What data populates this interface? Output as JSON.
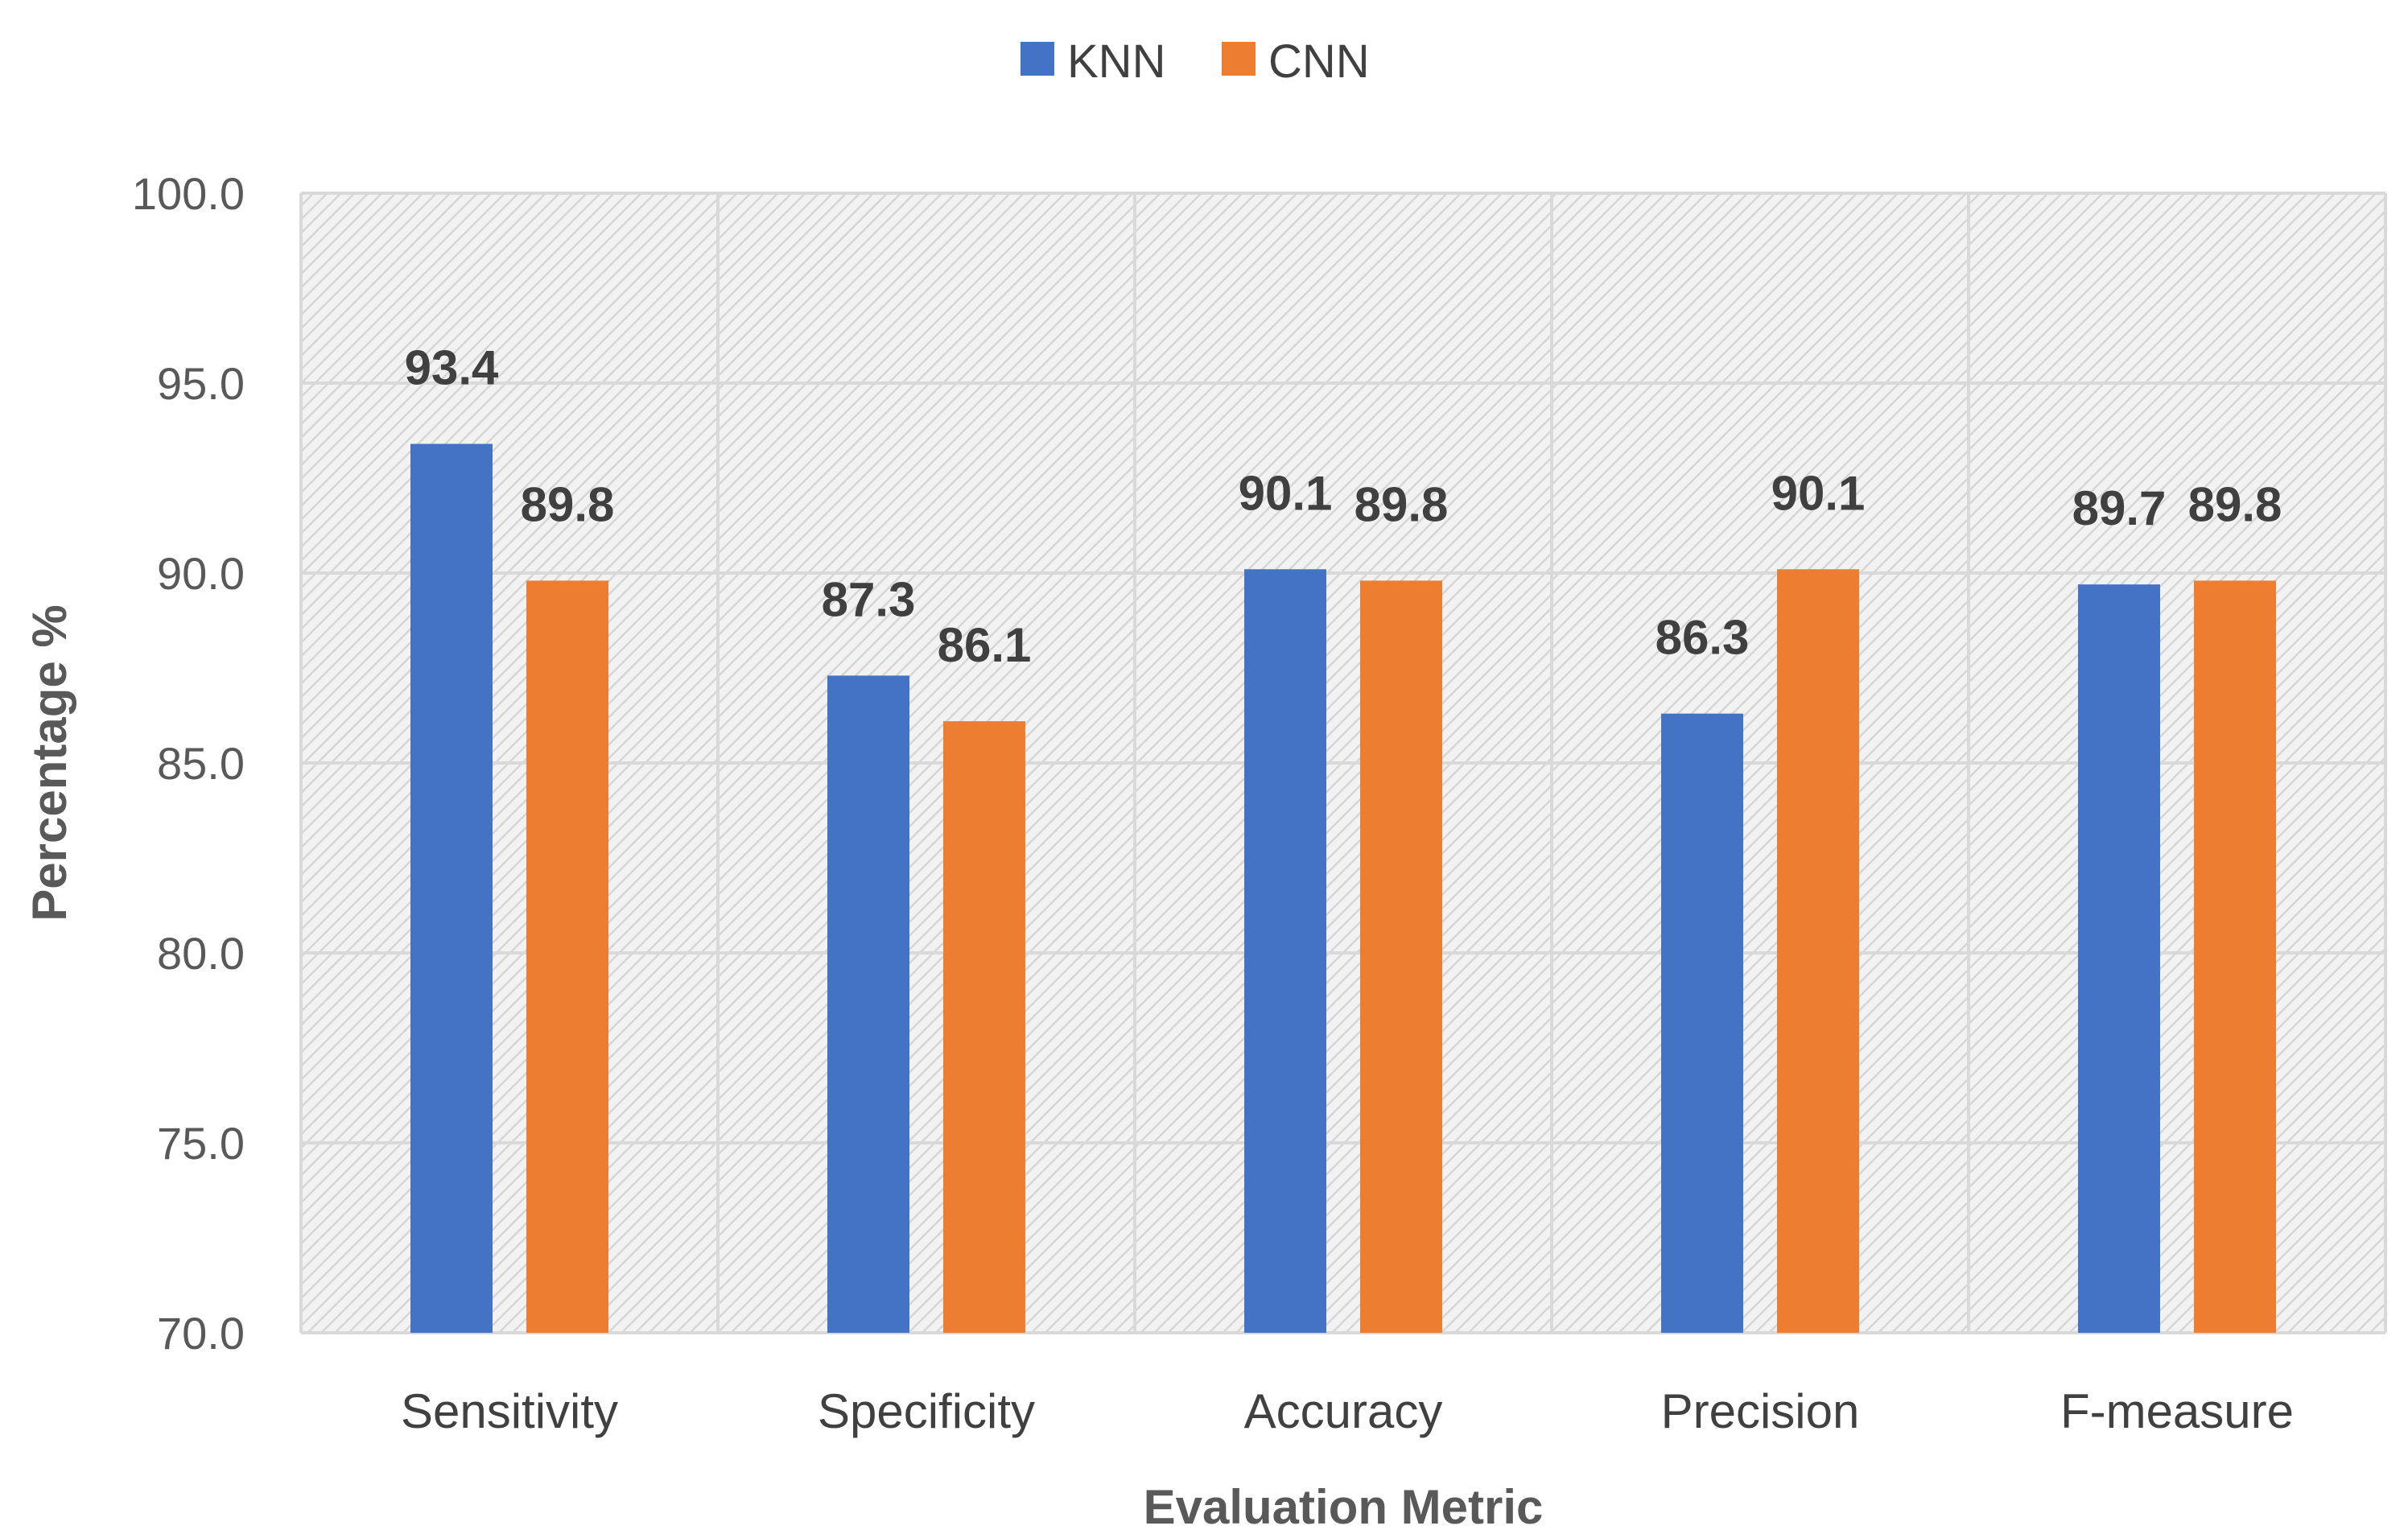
{
  "chart_data": {
    "type": "bar",
    "title": "",
    "xlabel": "Evaluation Metric",
    "ylabel": "Percentage %",
    "ylim": [
      70,
      100
    ],
    "ytick_step": 5,
    "yticks": [
      "70.0",
      "75.0",
      "80.0",
      "85.0",
      "90.0",
      "95.0",
      "100.0"
    ],
    "grid": true,
    "legend_position": "top-center",
    "categories": [
      "Sensitivity",
      "Specificity",
      "Accuracy",
      "Precision",
      "F-measure"
    ],
    "series": [
      {
        "name": "KNN",
        "color": "#4472C4",
        "values": [
          93.4,
          87.3,
          90.1,
          86.3,
          89.7
        ],
        "labels": [
          "93.4",
          "87.3",
          "90.1",
          "86.3",
          "89.7"
        ]
      },
      {
        "name": "CNN",
        "color": "#ED7D31",
        "values": [
          89.8,
          86.1,
          89.8,
          90.1,
          89.8
        ],
        "labels": [
          "89.8",
          "86.1",
          "89.8",
          "90.1",
          "89.8"
        ]
      }
    ]
  }
}
